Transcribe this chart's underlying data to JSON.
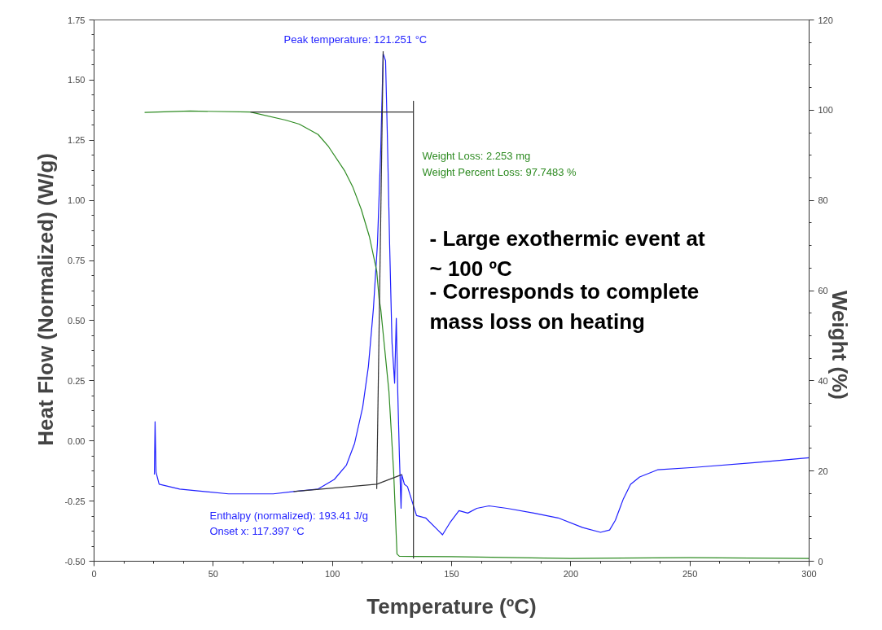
{
  "chart_data": {
    "type": "line",
    "xlabel": "Temperature (ºC)",
    "ylabel": "Heat Flow (Normalized)    (W/g)",
    "y2label": "Weight (%)",
    "series": [
      {
        "color": "#1f1fff",
        "x": [
          25.3,
          25.6,
          26.0,
          27.3,
          35.9,
          56.4,
          75.2,
          83.7,
          94.0,
          100.8,
          105.9,
          109.3,
          112.7,
          115.1,
          117.2,
          118.9,
          120.3,
          121.3,
          122.3,
          123.0,
          124.0,
          125.0,
          126.1,
          126.8,
          127.4,
          128.1,
          128.8,
          129.1,
          130.2,
          131.5,
          135.3,
          139.1,
          144.2,
          146.2,
          149.3,
          153.1,
          156.8,
          160.6,
          165.7,
          173.2,
          184.5,
          194.7,
          205.0,
          212.5,
          216.3,
          218.7,
          222.1,
          225.1,
          228.9,
          236.4,
          251.8,
          277.1,
          300.0
        ],
        "values": [
          -0.14,
          0.08,
          -0.13,
          -0.18,
          -0.2,
          -0.22,
          -0.22,
          -0.21,
          -0.2,
          -0.16,
          -0.1,
          -0.01,
          0.14,
          0.31,
          0.55,
          0.82,
          1.22,
          1.61,
          1.58,
          1.29,
          0.82,
          0.41,
          0.24,
          0.51,
          0.21,
          -0.06,
          -0.28,
          -0.14,
          -0.18,
          -0.19,
          -0.31,
          -0.32,
          -0.37,
          -0.39,
          -0.34,
          -0.29,
          -0.3,
          -0.28,
          -0.27,
          -0.28,
          -0.3,
          -0.32,
          -0.36,
          -0.38,
          -0.37,
          -0.33,
          -0.24,
          -0.18,
          -0.15,
          -0.12,
          -0.11,
          -0.09,
          -0.07
        ]
      },
      {
        "color": "#2e8b22",
        "axis": "y2",
        "x": [
          21.2,
          40.3,
          65.6,
          80.3,
          86.1,
          94.0,
          98.4,
          105.2,
          108.6,
          112.1,
          115.5,
          118.6,
          119.6,
          120.3,
          123.7,
          125.7,
          127.1,
          128.1,
          150.0,
          200.0,
          250.0,
          300.0
        ],
        "values": [
          99.5,
          99.8,
          99.6,
          97.8,
          96.9,
          94.6,
          91.9,
          86.5,
          82.9,
          78.0,
          72.0,
          64.3,
          58.1,
          55.8,
          37.7,
          19.7,
          1.6,
          1.1,
          1.0,
          0.6,
          0.8,
          0.6
        ]
      },
      {
        "color": "#333333",
        "axis": "y2",
        "x": [
          65.6,
          134.0,
          134.0,
          134.0
        ],
        "values": [
          99.6,
          99.6,
          102.0,
          0.6
        ]
      },
      {
        "color": "#333333",
        "x": [
          83.7,
          118.6,
          129.1
        ],
        "values": [
          -0.21,
          -0.18,
          -0.14
        ]
      },
      {
        "color": "#333333",
        "x": [
          118.6,
          121.3
        ],
        "values": [
          -0.2,
          1.62
        ]
      }
    ],
    "annotations": [
      "Peak temperature: 121.251 °C",
      "Weight Loss: 2.253 mg",
      "Weight Percent Loss: 97.7483 %",
      "Enthalpy (normalized): 193.41 J/g",
      "Onset x: 117.397 °C",
      "-    Large exothermic event at\n      ~ 100 ºC",
      "-    Corresponds to complete\n      mass loss on heating"
    ],
    "xlim": [
      0,
      300
    ],
    "xticks": [
      0,
      50,
      100,
      150,
      200,
      250,
      300
    ],
    "ylim": [
      -0.5,
      1.75
    ],
    "yticks": [
      {
        "value": -0.5,
        "label": "-0.50"
      },
      {
        "value": -0.25,
        "label": "-0.25"
      },
      {
        "value": 0,
        "label": "0.00"
      },
      {
        "value": 0.25,
        "label": "0.25"
      },
      {
        "value": 0.5,
        "label": "0.50"
      },
      {
        "value": 0.75,
        "label": "0.75"
      },
      {
        "value": 1.0,
        "label": "1.00"
      },
      {
        "value": 1.25,
        "label": "1.25"
      },
      {
        "value": 1.5,
        "label": "1.50"
      },
      {
        "value": 1.75,
        "label": "1.75"
      }
    ],
    "y2lim": [
      0,
      120
    ],
    "y2ticks": [
      0,
      20,
      40,
      60,
      80,
      100,
      120
    ],
    "grid": false,
    "marker": "none",
    "line_style": "solid"
  }
}
